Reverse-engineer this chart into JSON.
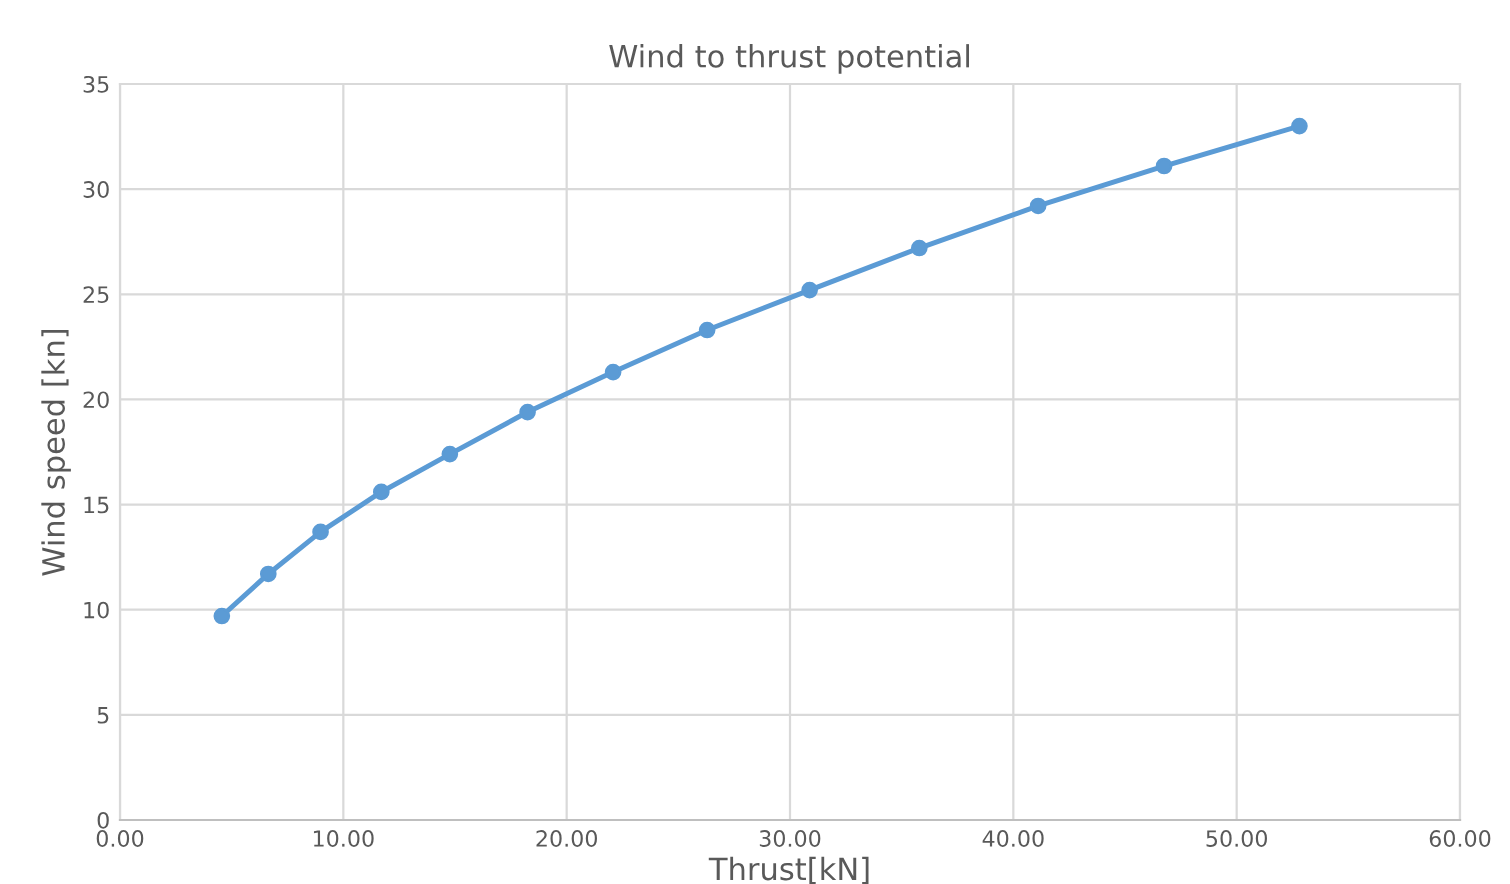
{
  "chart_data": {
    "type": "line",
    "title": "Wind to thrust potential",
    "xlabel": "Thrust[kN]",
    "ylabel": "Wind speed [kn]",
    "series": [
      {
        "color": "#5b9bd5",
        "x": [
          4.56,
          6.64,
          8.98,
          11.7,
          14.77,
          18.25,
          22.08,
          26.29,
          30.88,
          35.79,
          41.11,
          46.75,
          52.81
        ],
        "values": [
          9.7,
          11.7,
          13.7,
          15.6,
          17.4,
          19.4,
          21.3,
          23.3,
          25.2,
          27.2,
          29.2,
          31.1,
          33.0
        ]
      }
    ],
    "xlim": [
      0,
      60
    ],
    "xticks": [
      {
        "value": 0,
        "label": "0.00"
      },
      {
        "value": 10,
        "label": "10.00"
      },
      {
        "value": 20,
        "label": "20.00"
      },
      {
        "value": 30,
        "label": "30.00"
      },
      {
        "value": 40,
        "label": "40.00"
      },
      {
        "value": 50,
        "label": "50.00"
      },
      {
        "value": 60,
        "label": "60.00"
      }
    ],
    "ylim": [
      0,
      35
    ],
    "yticks": [
      0,
      5,
      10,
      15,
      20,
      25,
      30,
      35
    ],
    "grid": true,
    "marker": "circle",
    "line_style": "solid"
  }
}
